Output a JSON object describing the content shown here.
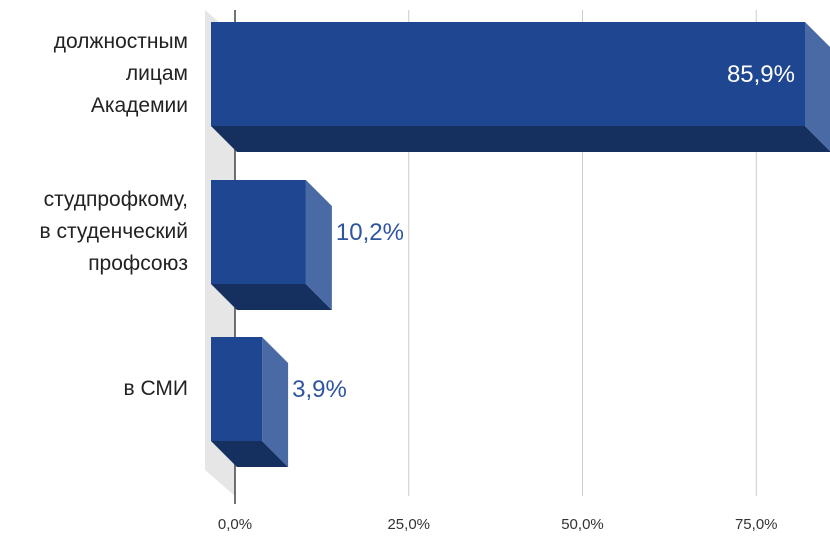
{
  "chart_data": {
    "type": "bar",
    "orientation": "horizontal",
    "style": "3d",
    "categories": [
      [
        "должностным",
        "лицам",
        "Академии"
      ],
      [
        "студпрофкому,",
        "в студенческий",
        "профсоюз"
      ],
      [
        "в СМИ"
      ]
    ],
    "values": [
      85.9,
      10.2,
      3.9
    ],
    "value_labels": [
      "85,9%",
      "10,2%",
      "3,9%"
    ],
    "x_ticks": [
      "0,0%",
      "25,0%",
      "50,0%",
      "75,0%"
    ],
    "x_tick_values": [
      0,
      25,
      50,
      75
    ],
    "xlim": [
      0,
      85.9
    ],
    "grid": true,
    "colors": {
      "bar_front": "#1f4690",
      "bar_bottom": "#15305f",
      "bar_side": "#4a6aa6",
      "label_inside": "#ffffff",
      "label_outside": "#2f54a0",
      "wall": "#e6e6e6",
      "grid": "#cccccc",
      "axis": "#444444"
    }
  }
}
